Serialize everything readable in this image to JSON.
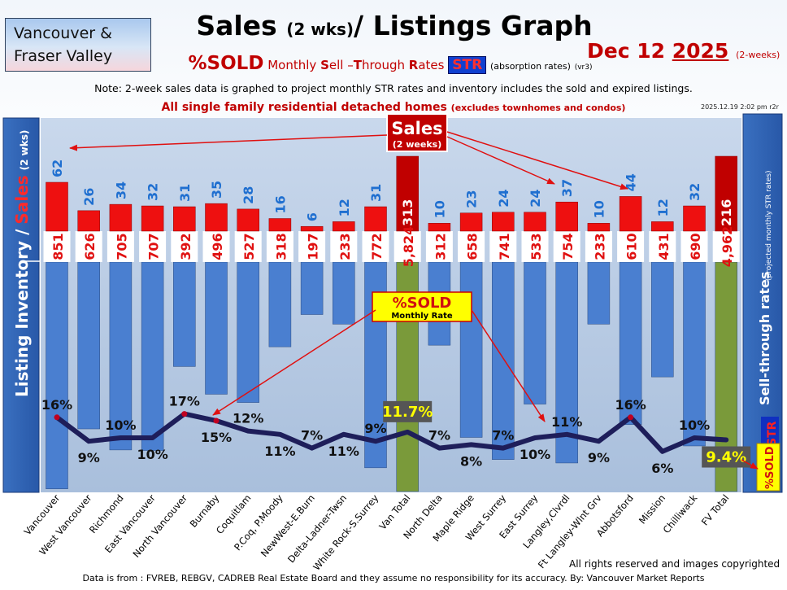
{
  "header": {
    "region_line1": "Vancouver &",
    "region_line2": "Fraser Valley",
    "title_main": "Sales",
    "title_small": "(2 wks)",
    "title_rest": "/ Listings Graph",
    "date_prefix": "Dec 12",
    "date_year": "2025",
    "date_suffix": "(2-weeks)",
    "subtitle_sold": "%SOLD",
    "subtitle_m": "Monthly",
    "subtitle_s": "S",
    "subtitle_ell": "ell –",
    "subtitle_t": "T",
    "subtitle_hrough": "hrough",
    "subtitle_r": "R",
    "subtitle_ates": "ates",
    "subtitle_str": "STR",
    "subtitle_absorption": "(absorption rates)",
    "subtitle_version": "(vr3)",
    "note": "Note: 2-week sales data is graphed to project monthly STR rates and inventory includes the sold and expired listings.",
    "homes_main": "All single family residential detached homes",
    "homes_small": "(excludes townhomes and condos)",
    "stamp": "2025.12.19 2:02 pm r2r"
  },
  "side": {
    "left_label_a": "Listing Inventory /",
    "left_label_b": "Sales",
    "left_label_c": "(2  wks)",
    "right_label_a": "Sell-through rates",
    "right_label_b": "(projected monthly STR rates)",
    "right_sold": "%SOLD",
    "right_str": "STR"
  },
  "callouts": {
    "sales_title": "Sales",
    "sales_sub": "(2 weeks)",
    "sold_title": "%SOLD",
    "sold_sub": "Monthly Rate"
  },
  "footer": {
    "rights": "All rights reserved and  images copyrighted",
    "source": "Data is from : FVREB, REBGV, CADREB Real Estate Board and they assume no responsibility for its accuracy. By: Vancouver Market Reports"
  },
  "colors": {
    "listing_bar": "#4a7fd0",
    "total_bar": "#7a9a3a",
    "sales_bar": "#ee1010",
    "value_blue": "#1f6fd0",
    "value_red": "#e01010",
    "line": "#1e1e5a"
  },
  "chart_data": {
    "type": "bar",
    "categories": [
      "Vancouver",
      "West Vancouver",
      "Richmond",
      "East Vancouver",
      "North Vancouver",
      "Burnaby",
      "Coquitlam",
      "P.Coq, P.Moody",
      "NewWest-E.Burn",
      "Delta-Ladner-Twsn",
      "White Rock-S.Surrey",
      "Van Total",
      "North Delta",
      "Maple Ridge",
      "West Surrey",
      "East Surrey",
      "Langley,Clvrdl",
      "Ft Langley-Wlnt Grv",
      "Abbotsford",
      "Mission",
      "Chilliwack",
      "FV Total"
    ],
    "series": [
      {
        "name": "Listing Inventory",
        "values": [
          851,
          626,
          705,
          707,
          392,
          496,
          527,
          318,
          197,
          233,
          772,
          5824,
          312,
          658,
          741,
          533,
          754,
          233,
          610,
          431,
          690,
          4962
        ],
        "labels": [
          "851",
          "626",
          "705",
          "707",
          "392",
          "496",
          "527",
          "318",
          "197",
          "233",
          "772",
          "5,824",
          "312",
          "658",
          "741",
          "533",
          "754",
          "233",
          "610",
          "431",
          "690",
          "4,962"
        ]
      },
      {
        "name": "Sales",
        "values": [
          62,
          26,
          34,
          32,
          31,
          35,
          28,
          16,
          6,
          12,
          31,
          313,
          10,
          23,
          24,
          24,
          37,
          10,
          44,
          12,
          32,
          216
        ]
      },
      {
        "name": "%SOLD",
        "values": [
          16,
          9,
          10,
          10,
          17,
          15,
          12,
          11,
          7,
          11,
          9,
          11.7,
          7,
          8,
          7,
          10,
          11,
          9,
          16,
          6,
          10,
          9.4
        ],
        "labels": [
          "16%",
          "9%",
          "10%",
          "10%",
          "17%",
          "15%",
          "12%",
          "11%",
          "7%",
          "11%",
          "9%",
          "11.7%",
          "7%",
          "8%",
          "7%",
          "10%",
          "11%",
          "9%",
          "16%",
          "6%",
          "10%",
          "9.4%"
        ]
      }
    ],
    "total_indices": [
      11,
      21
    ]
  }
}
